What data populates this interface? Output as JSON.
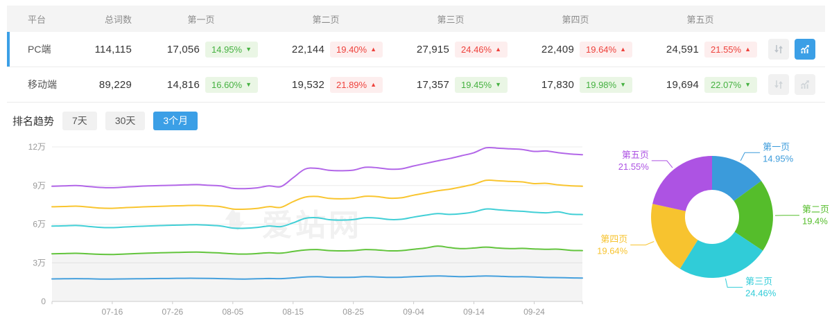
{
  "colors": {
    "accent": "#3b9fe6",
    "badge_up_red": "#ee423c",
    "badge_down_green": "#45b140",
    "header_bg": "#f4f4f4"
  },
  "table": {
    "columns": [
      "平台",
      "总词数",
      "第一页",
      "第二页",
      "第三页",
      "第四页",
      "第五页"
    ],
    "rows": [
      {
        "platform": "PC端",
        "total": "114,115",
        "selected": true,
        "chart_active": true,
        "pages": [
          {
            "count": "17,056",
            "pct": "14.95%",
            "dir": "down"
          },
          {
            "count": "22,144",
            "pct": "19.40%",
            "dir": "up"
          },
          {
            "count": "27,915",
            "pct": "24.46%",
            "dir": "up"
          },
          {
            "count": "22,409",
            "pct": "19.64%",
            "dir": "up"
          },
          {
            "count": "24,591",
            "pct": "21.55%",
            "dir": "up"
          }
        ]
      },
      {
        "platform": "移动端",
        "total": "89,229",
        "selected": false,
        "chart_active": false,
        "pages": [
          {
            "count": "14,816",
            "pct": "16.60%",
            "dir": "down"
          },
          {
            "count": "19,532",
            "pct": "21.89%",
            "dir": "up"
          },
          {
            "count": "17,357",
            "pct": "19.45%",
            "dir": "down"
          },
          {
            "count": "17,830",
            "pct": "19.98%",
            "dir": "down"
          },
          {
            "count": "19,694",
            "pct": "22.07%",
            "dir": "down"
          }
        ]
      }
    ]
  },
  "trend": {
    "label": "排名趋势",
    "tabs": [
      {
        "label": "7天",
        "active": false
      },
      {
        "label": "30天",
        "active": false
      },
      {
        "label": "3个月",
        "active": true
      }
    ],
    "watermark": "爱站网"
  },
  "chart_data": [
    {
      "type": "line",
      "title": "排名趋势 3个月 (PC端, 各页收录词数累计)",
      "unit": "万",
      "ylim": [
        0,
        130000
      ],
      "grid": true,
      "y_labels": [
        "0",
        "3万",
        "6万",
        "9万",
        "12万"
      ],
      "x_ticks": [
        {
          "idx": 5,
          "label": "07-16"
        },
        {
          "idx": 10,
          "label": "07-26"
        },
        {
          "idx": 15,
          "label": "08-05"
        },
        {
          "idx": 20,
          "label": "08-15"
        },
        {
          "idx": 25,
          "label": "08-25"
        },
        {
          "idx": 30,
          "label": "09-04"
        },
        {
          "idx": 35,
          "label": "09-14"
        },
        {
          "idx": 40,
          "label": "09-24"
        }
      ],
      "series": [
        {
          "name": "第五页",
          "color": "#b266e8",
          "values": [
            8.95,
            8.97,
            9.0,
            8.93,
            8.85,
            8.83,
            8.88,
            8.93,
            8.97,
            9.0,
            9.02,
            9.05,
            9.07,
            9.02,
            8.97,
            8.78,
            8.76,
            8.82,
            8.97,
            8.92,
            9.6,
            10.28,
            10.33,
            10.18,
            10.15,
            10.2,
            10.42,
            10.38,
            10.27,
            10.3,
            10.52,
            10.72,
            10.92,
            11.1,
            11.32,
            11.55,
            11.93,
            11.9,
            11.85,
            11.8,
            11.65,
            11.68,
            11.55,
            11.45,
            11.4
          ]
        },
        {
          "name": "第四页",
          "color": "#f9c52f",
          "values": [
            7.35,
            7.37,
            7.4,
            7.33,
            7.25,
            7.23,
            7.28,
            7.32,
            7.36,
            7.39,
            7.42,
            7.44,
            7.46,
            7.42,
            7.36,
            7.18,
            7.16,
            7.22,
            7.36,
            7.31,
            7.75,
            8.1,
            8.15,
            8.0,
            7.97,
            8.01,
            8.17,
            8.14,
            8.02,
            8.05,
            8.25,
            8.42,
            8.6,
            8.72,
            8.9,
            9.1,
            9.4,
            9.37,
            9.32,
            9.28,
            9.15,
            9.17,
            9.05,
            8.98,
            8.95
          ]
        },
        {
          "name": "第三页",
          "color": "#41cfd6",
          "values": [
            5.85,
            5.87,
            5.9,
            5.83,
            5.75,
            5.73,
            5.78,
            5.82,
            5.86,
            5.89,
            5.92,
            5.94,
            5.96,
            5.92,
            5.86,
            5.7,
            5.68,
            5.74,
            5.86,
            5.81,
            6.1,
            6.45,
            6.5,
            6.35,
            6.32,
            6.36,
            6.5,
            6.47,
            6.36,
            6.38,
            6.55,
            6.7,
            6.82,
            6.76,
            6.82,
            6.95,
            7.18,
            7.12,
            7.05,
            7.0,
            6.92,
            6.88,
            6.95,
            6.78,
            6.75
          ]
        },
        {
          "name": "第二页",
          "color": "#62c43c",
          "area": true,
          "values": [
            3.7,
            3.72,
            3.74,
            3.7,
            3.66,
            3.65,
            3.68,
            3.72,
            3.75,
            3.78,
            3.8,
            3.82,
            3.83,
            3.8,
            3.76,
            3.7,
            3.68,
            3.72,
            3.78,
            3.75,
            3.88,
            4.0,
            4.03,
            3.95,
            3.93,
            3.95,
            4.03,
            4.0,
            3.93,
            3.95,
            4.05,
            4.15,
            4.3,
            4.18,
            4.1,
            4.15,
            4.22,
            4.15,
            4.1,
            4.12,
            4.08,
            4.05,
            4.06,
            3.97,
            3.95
          ]
        },
        {
          "name": "第一页",
          "color": "#45a0dd",
          "values": [
            1.75,
            1.76,
            1.77,
            1.76,
            1.74,
            1.74,
            1.75,
            1.76,
            1.77,
            1.78,
            1.79,
            1.8,
            1.8,
            1.79,
            1.77,
            1.75,
            1.74,
            1.76,
            1.78,
            1.77,
            1.83,
            1.9,
            1.92,
            1.88,
            1.87,
            1.88,
            1.92,
            1.9,
            1.87,
            1.88,
            1.92,
            1.96,
            1.98,
            1.95,
            1.92,
            1.95,
            1.98,
            1.96,
            1.92,
            1.92,
            1.9,
            1.86,
            1.85,
            1.83,
            1.82
          ]
        }
      ]
    },
    {
      "type": "donut",
      "title": "各页占比",
      "slices": [
        {
          "label": "第一页",
          "value": 14.95,
          "display": "14.95%",
          "color": "#3b9bdb"
        },
        {
          "label": "第二页",
          "value": 19.4,
          "display": "19.4%",
          "color": "#55bd2b"
        },
        {
          "label": "第三页",
          "value": 24.46,
          "display": "24.46%",
          "color": "#30ccd8"
        },
        {
          "label": "第四页",
          "value": 19.64,
          "display": "19.64%",
          "color": "#f7c32f"
        },
        {
          "label": "第五页",
          "value": 21.55,
          "display": "21.55%",
          "color": "#ad53e3"
        }
      ]
    }
  ]
}
